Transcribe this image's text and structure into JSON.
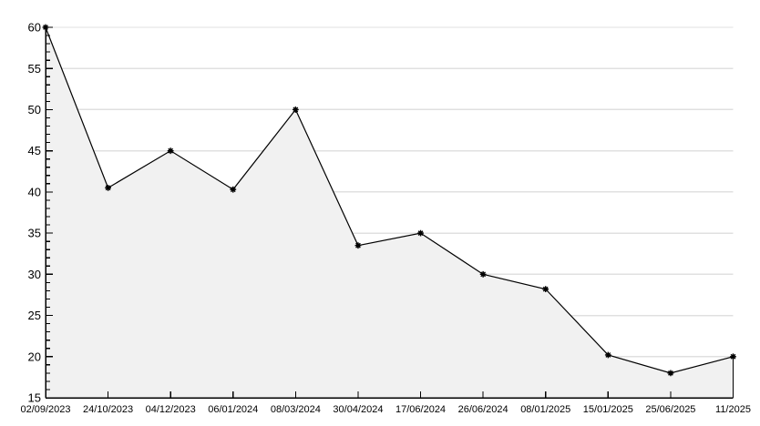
{
  "chart_data": {
    "type": "area",
    "title": "",
    "xlabel": "",
    "ylabel": "",
    "categories": [
      "02/09/2023",
      "24/10/2023",
      "04/12/2023",
      "06/01/2024",
      "08/03/2024",
      "30/04/2024",
      "17/06/2024",
      "26/06/2024",
      "08/01/2025",
      "15/01/2025",
      "25/06/2025",
      "11/2025"
    ],
    "values": [
      60,
      40.5,
      45,
      40.3,
      50,
      33.5,
      35,
      30,
      28.2,
      20.2,
      18,
      20
    ],
    "ylim": [
      15,
      60
    ],
    "y_major_step": 5,
    "y_minor_step": 1,
    "y_tick_labels": [
      "15",
      "20",
      "25",
      "30",
      "35",
      "40",
      "45",
      "50",
      "55",
      "60"
    ],
    "grid": true,
    "legend_position": "none",
    "marker_style": "black-asterisk-dot",
    "colors": {
      "line": "#000000",
      "marker": "#000000",
      "fill": "#f1f1f1",
      "grid": "#e0e0e0",
      "axis": "#000000",
      "background": "#ffffff",
      "text": "#000000"
    }
  }
}
